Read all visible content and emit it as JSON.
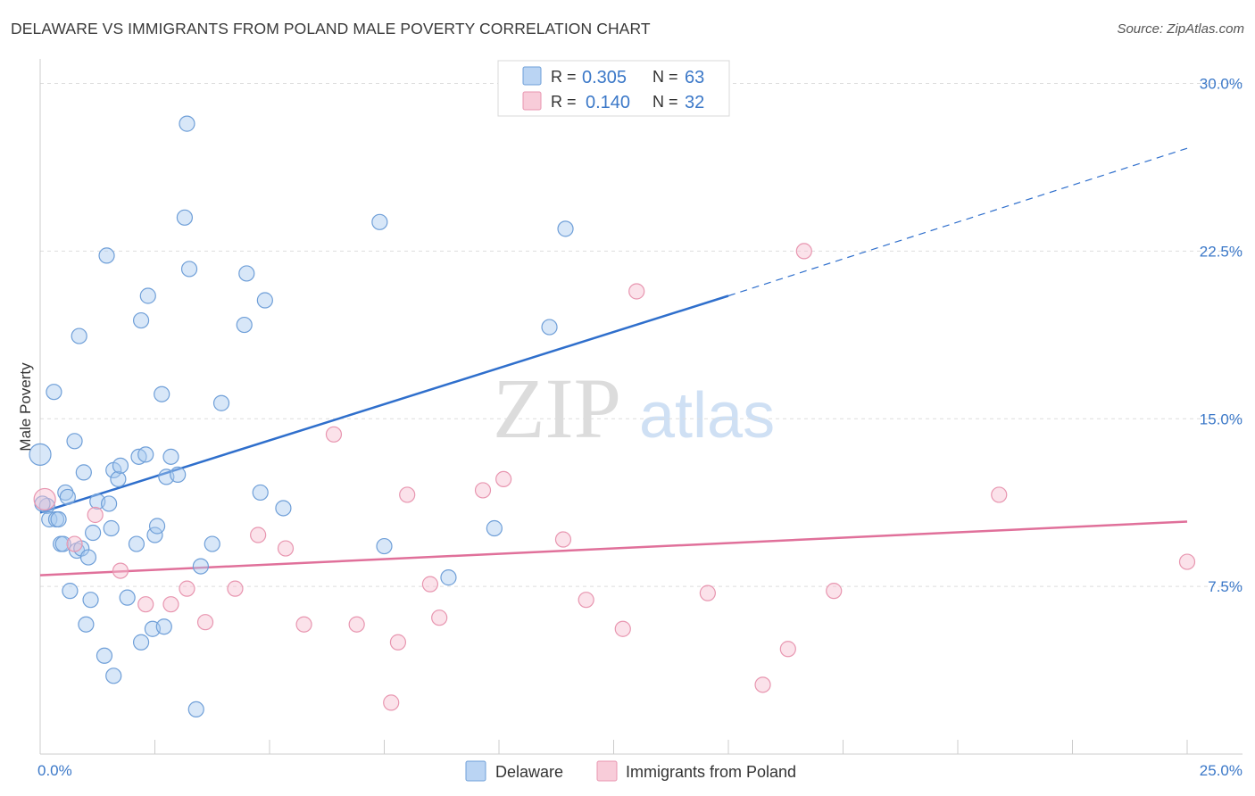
{
  "title": "DELAWARE VS IMMIGRANTS FROM POLAND MALE POVERTY CORRELATION CHART",
  "source": "Source: ZipAtlas.com",
  "watermark": {
    "part1": "ZIP",
    "part2": "atlas"
  },
  "colors": {
    "delaware_fill": "#a9c9f0",
    "delaware_stroke": "#6f9fd8",
    "delaware_line": "#2f6fcc",
    "poland_fill": "#f6bfd0",
    "poland_stroke": "#e896b0",
    "poland_line": "#e0709a",
    "tick_label": "#3b78c8",
    "grid": "#dddddd"
  },
  "legend_top": {
    "rows": [
      {
        "r_label": "R =",
        "r_value": "0.305",
        "n_label": "N =",
        "n_value": "63"
      },
      {
        "r_label": "R =",
        "r_value": "0.140",
        "n_label": "N =",
        "n_value": "32"
      }
    ]
  },
  "legend_bottom": [
    "Delaware",
    "Immigrants from Poland"
  ],
  "chart_data": {
    "type": "scatter",
    "title": "DELAWARE VS IMMIGRANTS FROM POLAND MALE POVERTY CORRELATION CHART",
    "xlabel": "",
    "ylabel": "Male Poverty",
    "xlim": [
      0,
      25
    ],
    "ylim": [
      0,
      30.7
    ],
    "x_tick_labels": [
      {
        "value": 0,
        "label": "0.0%"
      },
      {
        "value": 25,
        "label": "25.0%"
      }
    ],
    "y_tick_labels": [
      {
        "value": 7.5,
        "label": "7.5%"
      },
      {
        "value": 15,
        "label": "15.0%"
      },
      {
        "value": 22.5,
        "label": "22.5%"
      },
      {
        "value": 30,
        "label": "30.0%"
      }
    ],
    "grid": true,
    "legend_placement": "top-center",
    "series": [
      {
        "name": "Delaware",
        "points": [
          [
            0.0,
            13.4
          ],
          [
            0.15,
            11.1
          ],
          [
            0.2,
            10.5
          ],
          [
            0.3,
            16.2
          ],
          [
            0.35,
            10.5
          ],
          [
            0.4,
            10.5
          ],
          [
            0.45,
            9.4
          ],
          [
            0.5,
            9.4
          ],
          [
            0.55,
            11.7
          ],
          [
            0.6,
            11.5
          ],
          [
            0.65,
            7.3
          ],
          [
            0.75,
            14.0
          ],
          [
            0.8,
            9.1
          ],
          [
            0.85,
            18.7
          ],
          [
            0.9,
            9.2
          ],
          [
            0.95,
            12.6
          ],
          [
            1.0,
            5.8
          ],
          [
            1.05,
            8.8
          ],
          [
            1.1,
            6.9
          ],
          [
            1.15,
            9.9
          ],
          [
            1.25,
            11.3
          ],
          [
            1.4,
            4.4
          ],
          [
            1.45,
            22.3
          ],
          [
            1.5,
            11.2
          ],
          [
            1.55,
            10.1
          ],
          [
            1.6,
            3.5
          ],
          [
            1.6,
            12.7
          ],
          [
            1.7,
            12.3
          ],
          [
            1.75,
            12.9
          ],
          [
            1.9,
            7.0
          ],
          [
            2.1,
            9.4
          ],
          [
            2.15,
            13.3
          ],
          [
            2.2,
            19.4
          ],
          [
            2.2,
            5.0
          ],
          [
            2.3,
            13.4
          ],
          [
            2.35,
            20.5
          ],
          [
            2.45,
            5.6
          ],
          [
            2.5,
            9.8
          ],
          [
            2.55,
            10.2
          ],
          [
            2.65,
            16.1
          ],
          [
            2.7,
            5.7
          ],
          [
            2.75,
            12.4
          ],
          [
            2.85,
            13.3
          ],
          [
            3.0,
            12.5
          ],
          [
            3.15,
            24.0
          ],
          [
            3.2,
            28.2
          ],
          [
            3.25,
            21.7
          ],
          [
            3.4,
            2.0
          ],
          [
            3.5,
            8.4
          ],
          [
            3.75,
            9.4
          ],
          [
            3.95,
            15.7
          ],
          [
            4.45,
            19.2
          ],
          [
            4.5,
            21.5
          ],
          [
            4.8,
            11.7
          ],
          [
            4.9,
            20.3
          ],
          [
            5.3,
            11.0
          ],
          [
            7.4,
            23.8
          ],
          [
            7.5,
            9.3
          ],
          [
            8.9,
            7.9
          ],
          [
            9.9,
            10.1
          ],
          [
            11.1,
            19.1
          ],
          [
            11.45,
            23.5
          ],
          [
            0.05,
            11.2
          ]
        ]
      },
      {
        "name": "Immigrants from Poland",
        "points": [
          [
            0.1,
            11.4
          ],
          [
            0.75,
            9.4
          ],
          [
            1.2,
            10.7
          ],
          [
            1.75,
            8.2
          ],
          [
            2.3,
            6.7
          ],
          [
            2.85,
            6.7
          ],
          [
            3.2,
            7.4
          ],
          [
            3.6,
            5.9
          ],
          [
            4.25,
            7.4
          ],
          [
            4.75,
            9.8
          ],
          [
            5.35,
            9.2
          ],
          [
            5.75,
            5.8
          ],
          [
            6.4,
            14.3
          ],
          [
            6.9,
            5.8
          ],
          [
            7.65,
            2.3
          ],
          [
            7.8,
            5.0
          ],
          [
            8.0,
            11.6
          ],
          [
            8.5,
            7.6
          ],
          [
            8.7,
            6.1
          ],
          [
            9.65,
            11.8
          ],
          [
            10.1,
            12.3
          ],
          [
            11.4,
            9.6
          ],
          [
            11.9,
            6.9
          ],
          [
            12.7,
            5.6
          ],
          [
            13.0,
            20.7
          ],
          [
            14.55,
            7.2
          ],
          [
            15.75,
            3.1
          ],
          [
            16.3,
            4.7
          ],
          [
            16.65,
            22.5
          ],
          [
            17.3,
            7.3
          ],
          [
            20.9,
            11.6
          ],
          [
            25.0,
            8.6
          ]
        ]
      }
    ],
    "trendlines": [
      {
        "series": "Delaware",
        "solid_from": [
          0,
          10.8
        ],
        "solid_to": [
          15.0,
          20.5
        ],
        "dashed_to": [
          25.0,
          27.1
        ]
      },
      {
        "series": "Immigrants from Poland",
        "solid_from": [
          0,
          8.0
        ],
        "solid_to": [
          25.0,
          10.4
        ]
      }
    ]
  }
}
